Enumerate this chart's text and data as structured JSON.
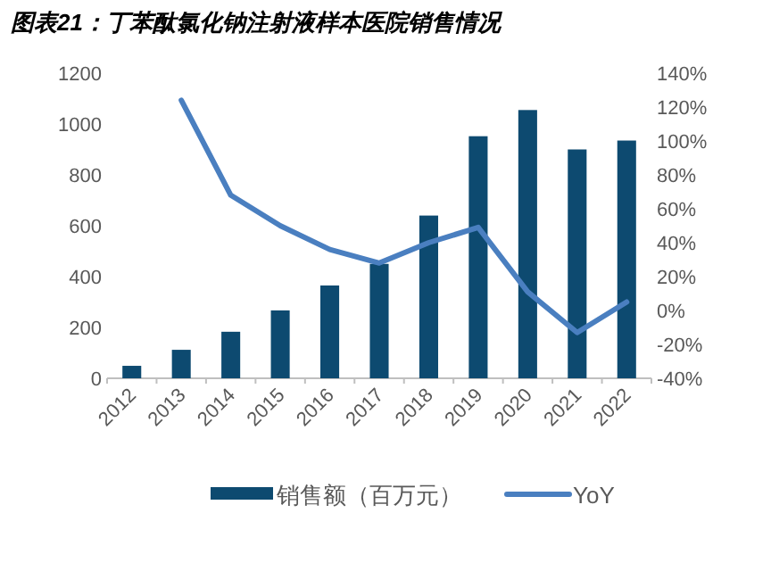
{
  "chart_data": {
    "type": "bar",
    "title": "图表21：丁苯酞氯化钠注射液样本医院销售情况",
    "categories": [
      "2012",
      "2013",
      "2014",
      "2015",
      "2016",
      "2017",
      "2018",
      "2019",
      "2020",
      "2021",
      "2022"
    ],
    "series": [
      {
        "name": "销售额（百万元）",
        "color": "#0d4a70",
        "values": [
          49,
          112,
          183,
          267,
          365,
          450,
          640,
          952,
          1055,
          900,
          935
        ]
      },
      {
        "name": "YoY",
        "type": "line",
        "axis": "y2",
        "color": "#4a7fc0",
        "values": [
          null,
          124,
          68,
          50,
          36,
          28,
          40,
          49,
          11,
          -13,
          5
        ]
      }
    ],
    "ylim": [
      0,
      1200
    ],
    "yticks": [
      0,
      200,
      400,
      600,
      800,
      1000,
      1200
    ],
    "y2lim": [
      -40,
      140
    ],
    "y2ticks": [
      {
        "value": -40,
        "label": "-40%"
      },
      {
        "value": -20,
        "label": "-20%"
      },
      {
        "value": 0,
        "label": "0%"
      },
      {
        "value": 20,
        "label": "20%"
      },
      {
        "value": 40,
        "label": "40%"
      },
      {
        "value": 60,
        "label": "60%"
      },
      {
        "value": 80,
        "label": "80%"
      },
      {
        "value": 100,
        "label": "100%"
      },
      {
        "value": 120,
        "label": "120%"
      },
      {
        "value": 140,
        "label": "140%"
      }
    ],
    "grid": false,
    "legend": "bottom"
  }
}
